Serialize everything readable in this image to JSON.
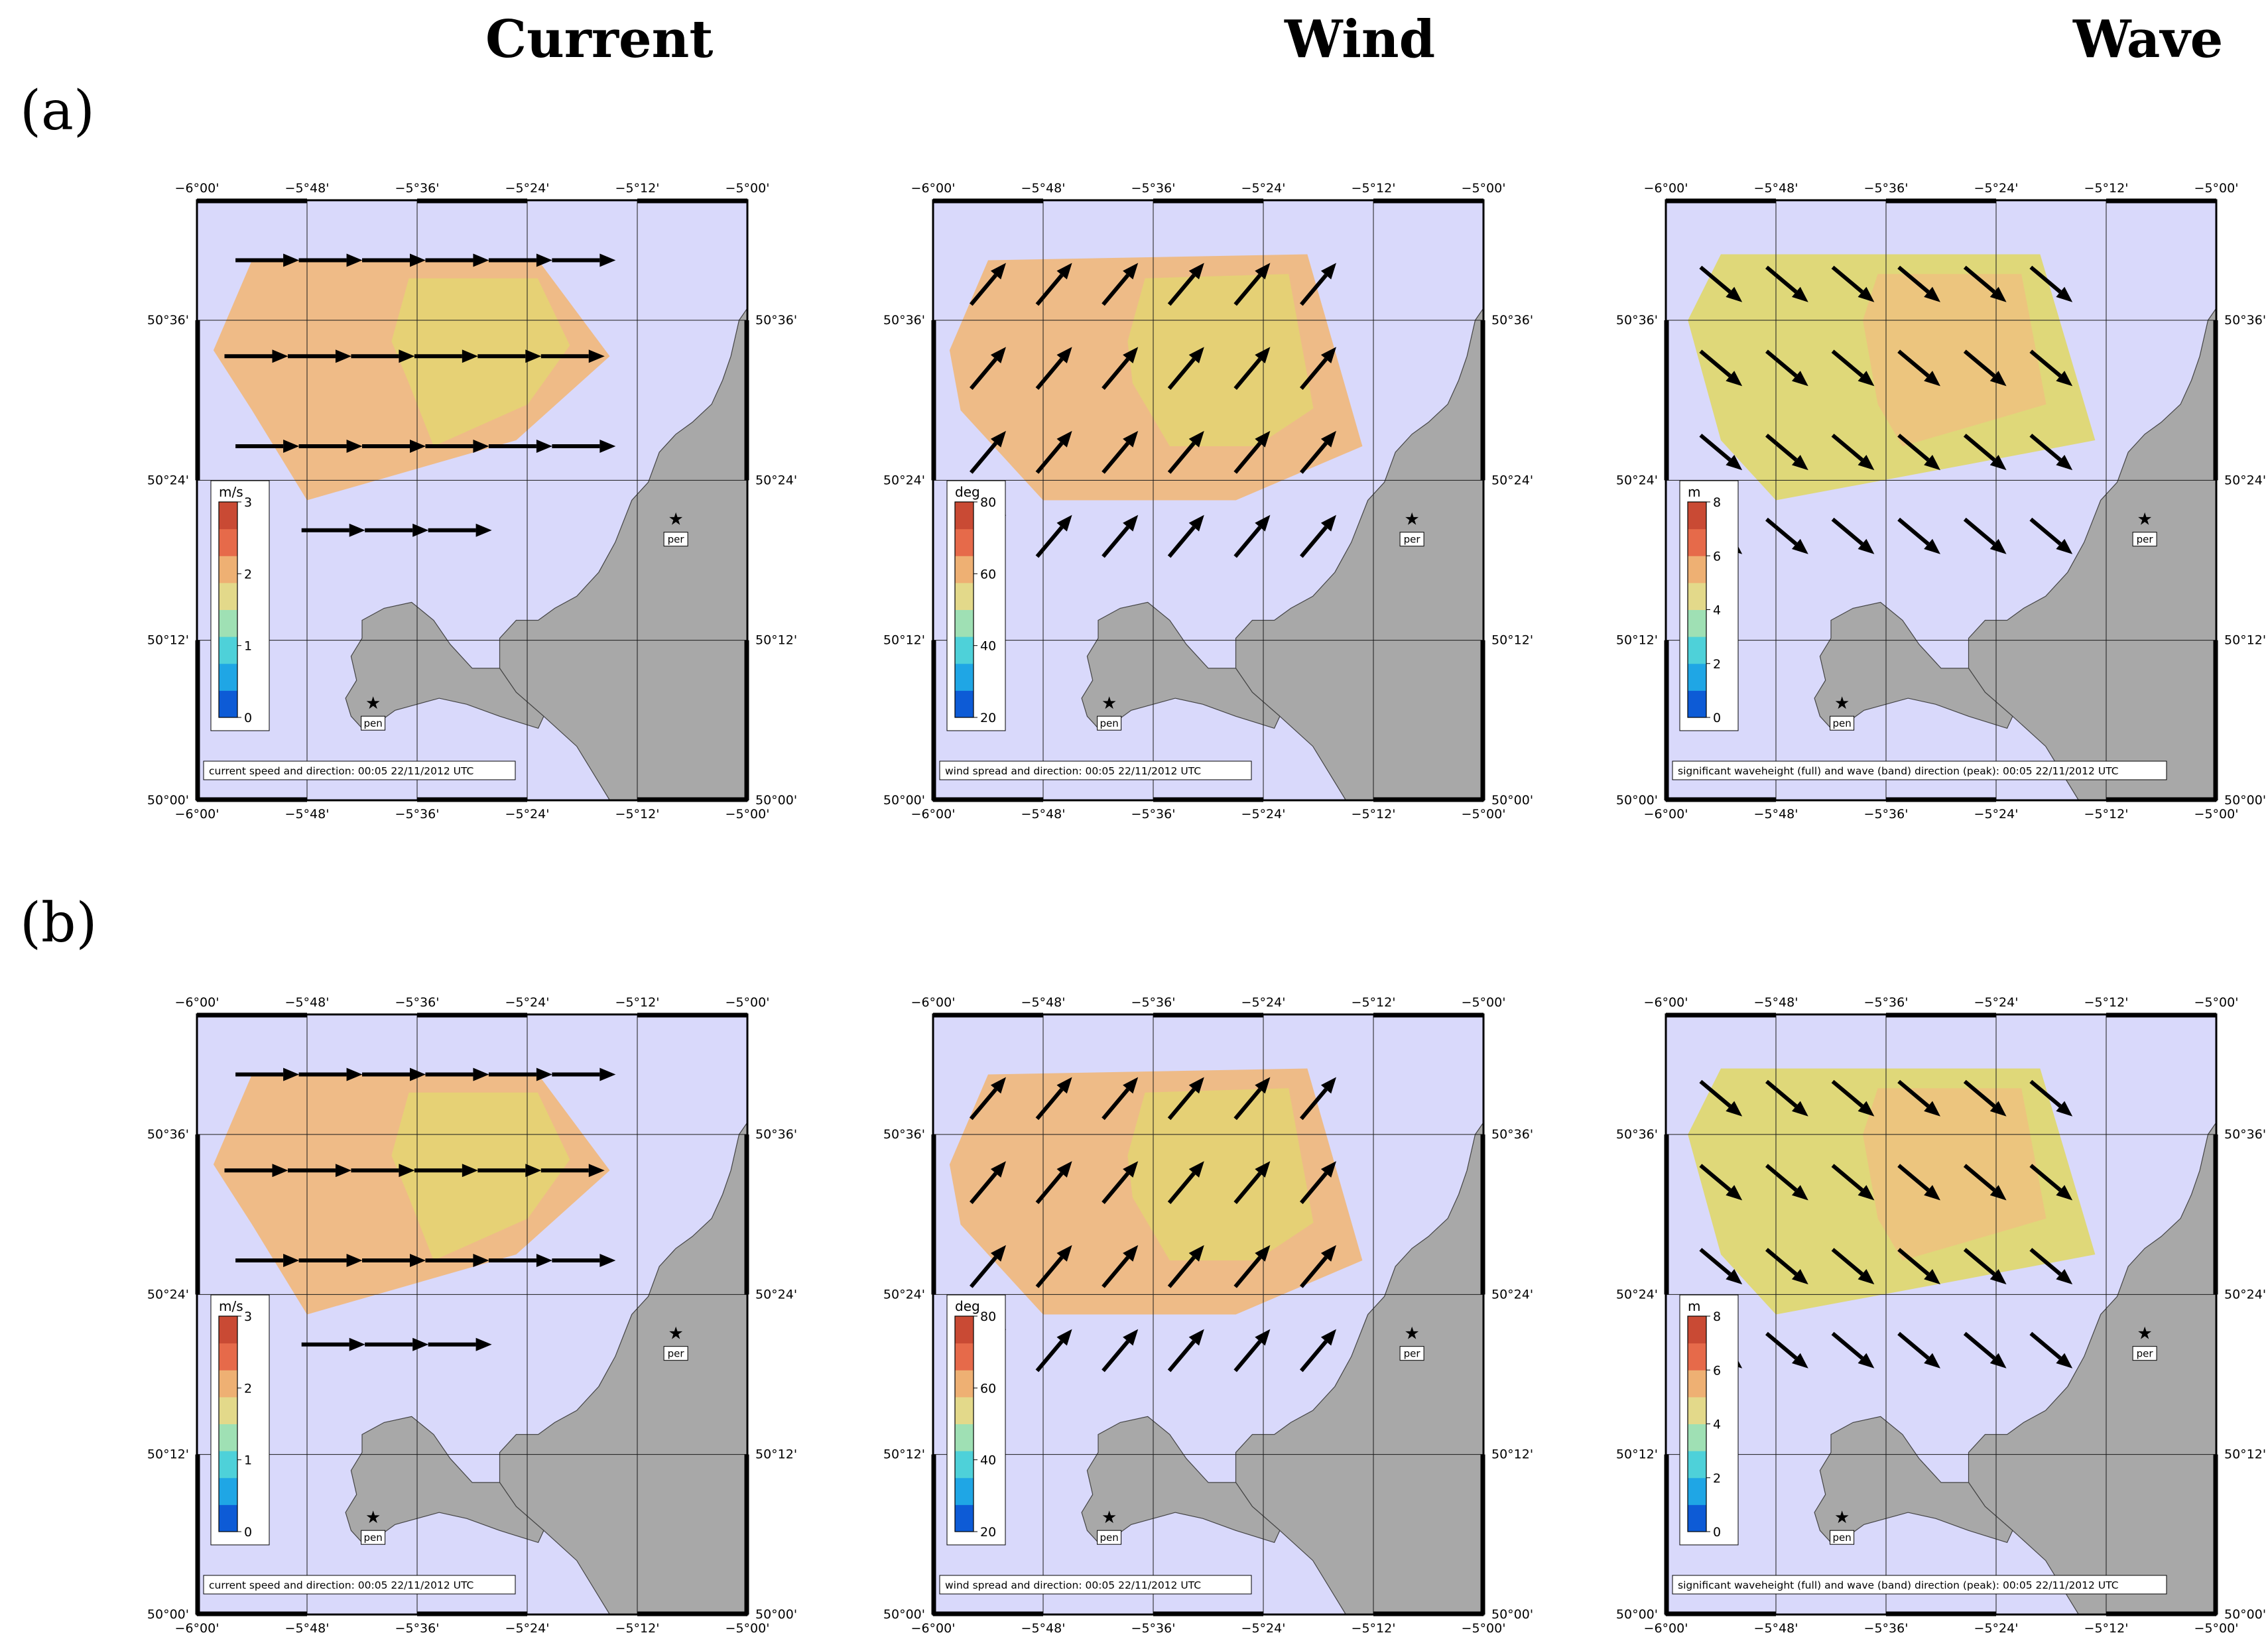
{
  "column_titles": [
    "Current",
    "Wind",
    "Wave"
  ],
  "row_labels": [
    "(a)",
    "(b)"
  ],
  "lon_ticks": [
    "−6°00'",
    "−5°48'",
    "−5°36'",
    "−5°24'",
    "−5°12'",
    "−5°00'"
  ],
  "lat_ticks": [
    "50°36'",
    "50°24'",
    "50°12'",
    "50°00'"
  ],
  "stations": [
    {
      "code": "per",
      "lon": -5.13,
      "lat": 50.35
    },
    {
      "code": "pen",
      "lon": -5.68,
      "lat": 50.12
    }
  ],
  "colors": {
    "sea": "#d9d9fb",
    "land": "#a8a8a8",
    "coast": "#444444",
    "grid": "#1a1a1a",
    "arrow": "#000000"
  },
  "panels": [
    {
      "id": "a-current",
      "row": 0,
      "col": 0,
      "unit": "m/s",
      "cb_ticks": [
        "3",
        "2",
        "1",
        "0"
      ],
      "caption": "current speed and direction: 00:05 22/11/2012 UTC",
      "field_color": "#f0b981",
      "field_color2": "#e4d771",
      "direction_deg": 90
    },
    {
      "id": "a-wind",
      "row": 0,
      "col": 1,
      "unit": "deg",
      "cb_ticks": [
        "80",
        "60",
        "40",
        "20"
      ],
      "caption": "wind spread and direction: 00:05 22/11/2012 UTC",
      "field_color": "#efb981",
      "field_color2": "#e2d670",
      "direction_deg": 40
    },
    {
      "id": "a-wave",
      "row": 0,
      "col": 2,
      "unit": "m",
      "cb_ticks": [
        "8",
        "6",
        "4",
        "2",
        "0"
      ],
      "caption": "significant waveheight (full) and wave (band) direction (peak): 00:05 22/11/2012 UTC",
      "field_color": "#dfd872",
      "field_color2": "#efc17f",
      "direction_deg": 130
    },
    {
      "id": "b-current",
      "row": 1,
      "col": 0,
      "unit": "m/s",
      "cb_ticks": [
        "3",
        "2",
        "1",
        "0"
      ],
      "caption": "current speed and direction: 00:05 22/11/2012 UTC",
      "field_color": "#f0b981",
      "field_color2": "#e4d771",
      "direction_deg": 90
    },
    {
      "id": "b-wind",
      "row": 1,
      "col": 1,
      "unit": "deg",
      "cb_ticks": [
        "80",
        "60",
        "40",
        "20"
      ],
      "caption": "wind spread and direction: 00:05 22/11/2012 UTC",
      "field_color": "#efb981",
      "field_color2": "#e2d670",
      "direction_deg": 40
    },
    {
      "id": "b-wave",
      "row": 1,
      "col": 2,
      "unit": "m",
      "cb_ticks": [
        "8",
        "6",
        "4",
        "2",
        "0"
      ],
      "caption": "significant waveheight (full) and wave (band) direction (peak): 00:05 22/11/2012 UTC",
      "field_color": "#dfd872",
      "field_color2": "#efc17f",
      "direction_deg": 130
    }
  ]
}
